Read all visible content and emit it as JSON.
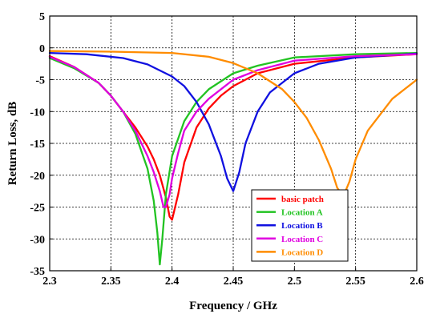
{
  "chart_data": {
    "type": "line",
    "title": "",
    "xlabel": "Frequency / GHz",
    "ylabel": "Return Loss, dB",
    "xlim": [
      2.3,
      2.6
    ],
    "ylim": [
      -35,
      5
    ],
    "xticks": [
      "2.3",
      "2.35",
      "2.4",
      "2.45",
      "2.5",
      "2.55",
      "2.6"
    ],
    "yticks": [
      "5",
      "0",
      "-5",
      "-10",
      "-15",
      "-20",
      "-25",
      "-30",
      "-35"
    ],
    "grid": true,
    "legend_position": "bottom-right",
    "series": [
      {
        "name": "basic patch",
        "color": "#ff0000",
        "x": [
          2.3,
          2.32,
          2.34,
          2.35,
          2.36,
          2.37,
          2.38,
          2.385,
          2.39,
          2.395,
          2.398,
          2.4,
          2.405,
          2.41,
          2.42,
          2.43,
          2.44,
          2.45,
          2.47,
          2.5,
          2.55,
          2.6
        ],
        "y": [
          -1.3,
          -3.0,
          -5.5,
          -7.5,
          -10.0,
          -12.5,
          -15.5,
          -17.5,
          -20.0,
          -23.5,
          -26.5,
          -27.0,
          -23.0,
          -18.0,
          -12.5,
          -9.5,
          -7.5,
          -6.0,
          -4.0,
          -2.5,
          -1.5,
          -1.0
        ]
      },
      {
        "name": "Location A",
        "color": "#22c322",
        "x": [
          2.3,
          2.32,
          2.34,
          2.35,
          2.36,
          2.37,
          2.38,
          2.385,
          2.388,
          2.39,
          2.392,
          2.395,
          2.4,
          2.41,
          2.42,
          2.43,
          2.45,
          2.47,
          2.5,
          2.55,
          2.6
        ],
        "y": [
          -1.6,
          -3.2,
          -5.5,
          -7.5,
          -10.0,
          -13.5,
          -19.0,
          -24.0,
          -29.0,
          -34.0,
          -30.0,
          -23.0,
          -17.0,
          -11.5,
          -8.5,
          -6.5,
          -4.0,
          -2.8,
          -1.5,
          -1.0,
          -0.8
        ]
      },
      {
        "name": "Location B",
        "color": "#1010e0",
        "x": [
          2.3,
          2.33,
          2.36,
          2.38,
          2.4,
          2.41,
          2.42,
          2.43,
          2.44,
          2.445,
          2.45,
          2.455,
          2.46,
          2.47,
          2.48,
          2.5,
          2.52,
          2.55,
          2.6
        ],
        "y": [
          -0.8,
          -1.0,
          -1.6,
          -2.6,
          -4.5,
          -6.0,
          -8.5,
          -12.0,
          -17.0,
          -20.5,
          -22.5,
          -19.5,
          -15.0,
          -10.0,
          -7.0,
          -4.0,
          -2.5,
          -1.5,
          -0.9
        ]
      },
      {
        "name": "Location C",
        "color": "#e000e0",
        "x": [
          2.3,
          2.32,
          2.34,
          2.35,
          2.36,
          2.37,
          2.38,
          2.385,
          2.39,
          2.393,
          2.395,
          2.398,
          2.4,
          2.405,
          2.41,
          2.42,
          2.43,
          2.45,
          2.47,
          2.5,
          2.55,
          2.6
        ],
        "y": [
          -1.4,
          -3.0,
          -5.5,
          -7.5,
          -10.0,
          -13.0,
          -17.0,
          -19.5,
          -22.5,
          -25.0,
          -25.0,
          -23.0,
          -20.5,
          -16.5,
          -13.0,
          -10.0,
          -8.0,
          -5.0,
          -3.5,
          -2.0,
          -1.3,
          -1.0
        ]
      },
      {
        "name": "Location D",
        "color": "#ff8c00",
        "x": [
          2.3,
          2.35,
          2.4,
          2.43,
          2.45,
          2.47,
          2.49,
          2.5,
          2.51,
          2.52,
          2.53,
          2.535,
          2.54,
          2.545,
          2.55,
          2.56,
          2.58,
          2.6
        ],
        "y": [
          -0.5,
          -0.6,
          -0.8,
          -1.4,
          -2.4,
          -4.0,
          -6.5,
          -8.5,
          -11.0,
          -14.5,
          -19.0,
          -22.0,
          -23.3,
          -21.0,
          -17.5,
          -13.0,
          -8.0,
          -5.0
        ]
      }
    ]
  }
}
